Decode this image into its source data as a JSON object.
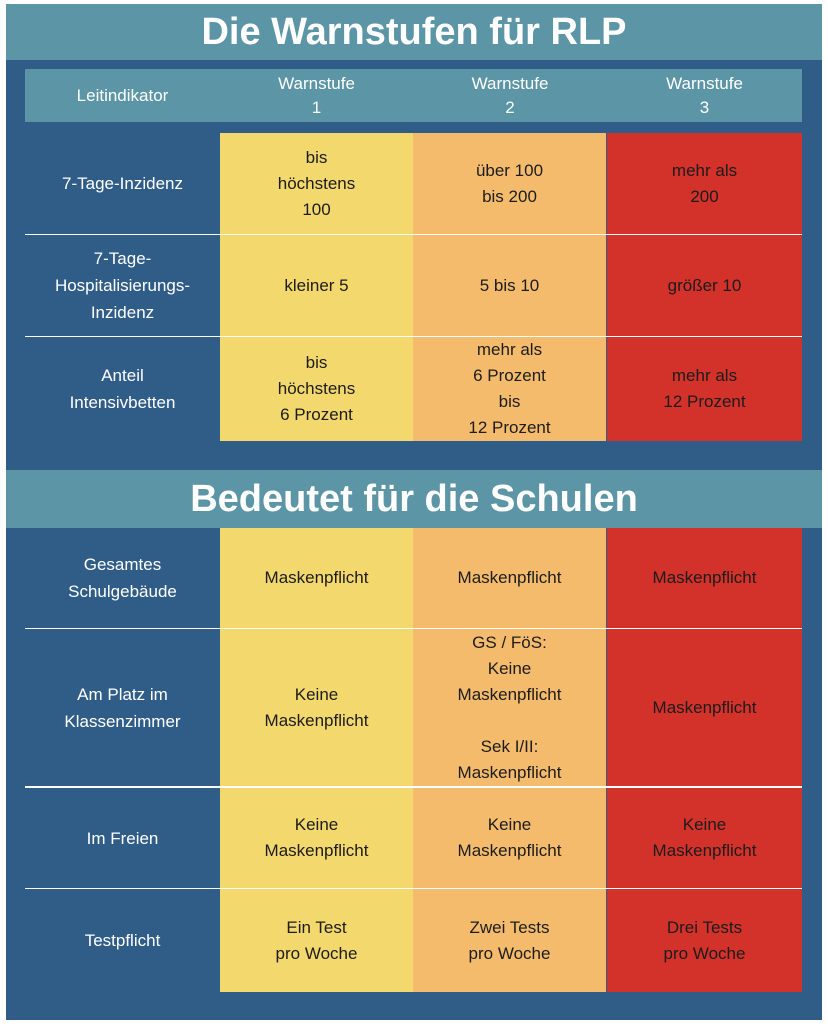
{
  "title": "Die Warnstufen für RLP",
  "subtitle": "Bedeutet für die Schulen",
  "header": {
    "indicator": "Leitindikator",
    "levels": [
      {
        "word": "Warnstufe",
        "num": "1"
      },
      {
        "word": "Warnstufe",
        "num": "2"
      },
      {
        "word": "Warnstufe",
        "num": "3"
      }
    ]
  },
  "indicators": [
    {
      "label": "7-Tage-Inzidenz",
      "values": [
        "bis\nhöchstens\n100",
        "über 100\nbis 200",
        "mehr als\n200"
      ]
    },
    {
      "label": "7-Tage-\nHospitalisierungs-\nInzidenz",
      "values": [
        "kleiner 5",
        "5 bis 10",
        "größer 10"
      ]
    },
    {
      "label": "Anteil\nIntensivbetten",
      "values": [
        "bis\nhöchstens\n6 Prozent",
        "mehr als\n6 Prozent\nbis\n12 Prozent",
        "mehr als\n12 Prozent"
      ]
    }
  ],
  "schools": [
    {
      "label": "Gesamtes\nSchulgebäude",
      "values": [
        "Maskenpflicht",
        "Maskenpflicht",
        "Maskenpflicht"
      ]
    },
    {
      "label": "Am Platz im\nKlassenzimmer",
      "values": [
        "Keine\nMaskenpflicht",
        "GS / FöS:\nKeine\nMaskenpflicht\n\nSek I/II:\nMaskenpflicht",
        "Maskenpflicht"
      ]
    },
    {
      "label": "Im Freien",
      "values": [
        "Keine\nMaskenpflicht",
        "Keine\nMaskenpflicht",
        "Keine\nMaskenpflicht"
      ]
    },
    {
      "label": "Testpflicht",
      "values": [
        "Ein Test\npro Woche",
        "Zwei Tests\npro Woche",
        "Drei Tests\npro Woche"
      ]
    }
  ],
  "colors": {
    "background": "#305d88",
    "banner": "#5b95a6",
    "level1": "#f3d86e",
    "level2": "#f5bb6d",
    "level3": "#d2322a"
  }
}
